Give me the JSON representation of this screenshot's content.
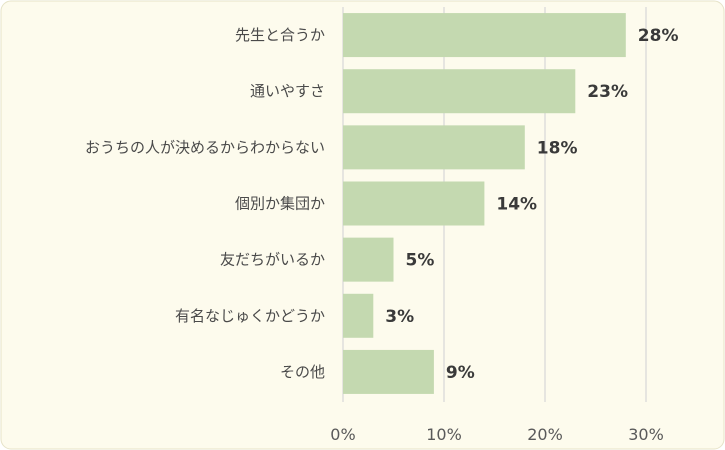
{
  "chart_data": {
    "type": "bar",
    "orientation": "horizontal",
    "categories": [
      "先生と合うか",
      "通いやすさ",
      "おうちの人が決めるからわからない",
      "個別か集団か",
      "友だちがいるか",
      "有名なじゅくかどうか",
      "その他"
    ],
    "values": [
      28,
      23,
      18,
      14,
      5,
      3,
      9
    ],
    "value_labels": [
      "28%",
      "23%",
      "18%",
      "14%",
      "5%",
      "3%",
      "9%"
    ],
    "x_ticks": [
      "0%",
      "10%",
      "20%",
      "30%"
    ],
    "xlim": [
      0,
      30
    ],
    "grid": true,
    "title": "",
    "xlabel": "",
    "ylabel": "",
    "colors": {
      "bar": "#c4d9b0",
      "background": "#fdfbed",
      "border": "#e6e3c8",
      "grid": "#d9d9d9"
    }
  }
}
